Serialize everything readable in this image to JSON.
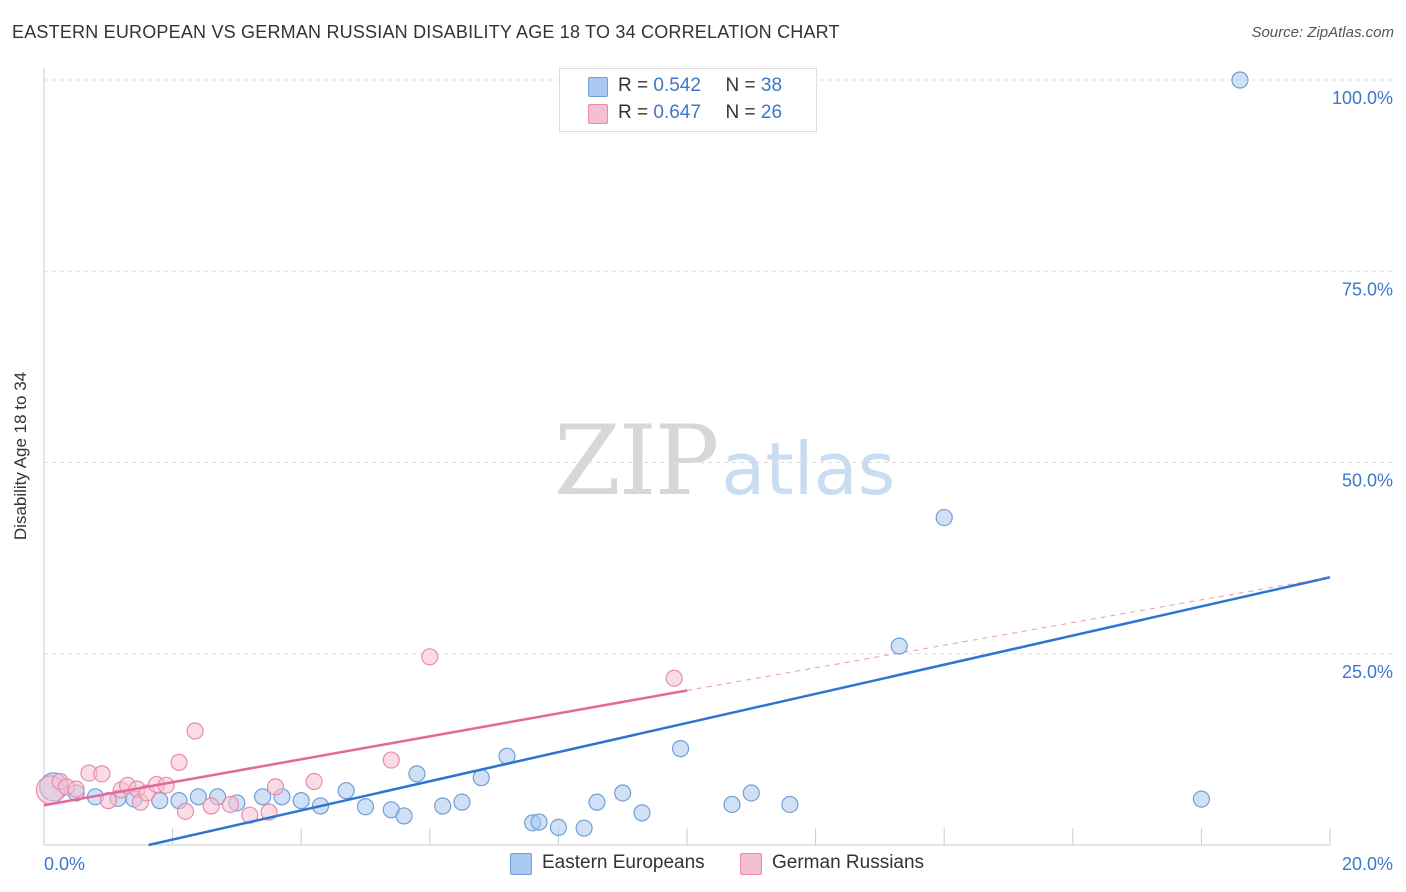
{
  "title": "EASTERN EUROPEAN VS GERMAN RUSSIAN DISABILITY AGE 18 TO 34 CORRELATION CHART",
  "source": "Source: ZipAtlas.com",
  "watermark": {
    "zip": "ZIP",
    "atlas": "atlas"
  },
  "legend_top": [
    {
      "r_label": "R =",
      "r_value": "0.542",
      "n_label": "N =",
      "n_value": "38"
    },
    {
      "r_label": "R =",
      "r_value": "0.647",
      "n_label": "N =",
      "n_value": "26"
    }
  ],
  "chart_data": {
    "type": "scatter",
    "title": "EASTERN EUROPEAN VS GERMAN RUSSIAN DISABILITY AGE 18 TO 34 CORRELATION CHART",
    "xlabel": "",
    "ylabel": "Disability Age 18 to 34",
    "xlim": [
      0,
      20
    ],
    "ylim": [
      0,
      100
    ],
    "x_tick_labels": [
      {
        "value": 0,
        "label": "0.0%"
      },
      {
        "value": 20,
        "label": "20.0%"
      }
    ],
    "y_tick_labels": [
      {
        "value": 25,
        "label": "25.0%"
      },
      {
        "value": 50,
        "label": "50.0%"
      },
      {
        "value": 75,
        "label": "75.0%"
      },
      {
        "value": 100,
        "label": "100.0%"
      }
    ],
    "x_gridlines": [
      2,
      4,
      6,
      8,
      10,
      12,
      14,
      16,
      18,
      20
    ],
    "y_gridlines": [
      25,
      50,
      75,
      100
    ],
    "series": [
      {
        "name": "Eastern Europeans",
        "color": "#a9c8ef",
        "stroke": "#6f9fd6",
        "trend_color": "#2f74d0",
        "r": 0.542,
        "n": 38,
        "trend": {
          "x0": 0,
          "y0": -3.1,
          "x1": 20,
          "y1": 35.0
        },
        "points": [
          [
            0.15,
            7.6
          ],
          [
            0.8,
            6.3
          ],
          [
            1.15,
            6.1
          ],
          [
            1.4,
            6.0
          ],
          [
            1.8,
            5.8
          ],
          [
            2.1,
            5.8
          ],
          [
            2.4,
            6.3
          ],
          [
            2.7,
            6.3
          ],
          [
            3.0,
            5.5
          ],
          [
            3.4,
            6.3
          ],
          [
            3.7,
            6.3
          ],
          [
            4.0,
            5.8
          ],
          [
            4.3,
            5.1
          ],
          [
            4.7,
            7.1
          ],
          [
            5.0,
            5.0
          ],
          [
            5.4,
            4.6
          ],
          [
            5.6,
            3.8
          ],
          [
            5.8,
            9.3
          ],
          [
            6.2,
            5.1
          ],
          [
            6.5,
            5.6
          ],
          [
            6.8,
            8.8
          ],
          [
            7.2,
            11.6
          ],
          [
            7.6,
            2.9
          ],
          [
            7.7,
            3.0
          ],
          [
            8.0,
            2.3
          ],
          [
            8.4,
            2.2
          ],
          [
            8.6,
            5.6
          ],
          [
            9.0,
            6.8
          ],
          [
            9.3,
            4.2
          ],
          [
            9.9,
            12.6
          ],
          [
            10.7,
            5.3
          ],
          [
            11.0,
            6.8
          ],
          [
            11.6,
            5.3
          ],
          [
            13.3,
            26.0
          ],
          [
            14.0,
            42.8
          ],
          [
            18.0,
            6.0
          ],
          [
            18.6,
            100.0
          ],
          [
            0.5,
            6.8
          ]
        ]
      },
      {
        "name": "German Russians",
        "color": "#f6bfd1",
        "stroke": "#e98bab",
        "trend_color": "#e4699a",
        "r": 0.647,
        "n": 26,
        "trend": {
          "x0": 0,
          "y0": 5.2,
          "x1": 10,
          "y1": 20.2
        },
        "dashed_extension": {
          "x0": 10,
          "y0": 20.2,
          "x1": 20,
          "y1": 35.0
        },
        "points": [
          [
            0.1,
            7.2
          ],
          [
            0.25,
            8.3
          ],
          [
            0.35,
            7.6
          ],
          [
            0.5,
            7.3
          ],
          [
            0.7,
            9.4
          ],
          [
            0.9,
            9.3
          ],
          [
            1.0,
            5.8
          ],
          [
            1.2,
            7.2
          ],
          [
            1.3,
            7.8
          ],
          [
            1.45,
            7.3
          ],
          [
            1.5,
            5.6
          ],
          [
            1.6,
            6.8
          ],
          [
            1.75,
            7.9
          ],
          [
            1.9,
            7.8
          ],
          [
            2.1,
            10.8
          ],
          [
            2.2,
            4.4
          ],
          [
            2.35,
            14.9
          ],
          [
            2.6,
            5.1
          ],
          [
            2.9,
            5.3
          ],
          [
            3.2,
            3.9
          ],
          [
            3.5,
            4.3
          ],
          [
            3.6,
            7.6
          ],
          [
            4.2,
            8.3
          ],
          [
            5.4,
            11.1
          ],
          [
            6.0,
            24.6
          ],
          [
            9.8,
            21.8
          ]
        ]
      }
    ]
  },
  "legend_bottom": [
    {
      "label": "Eastern Europeans"
    },
    {
      "label": "German Russians"
    }
  ]
}
